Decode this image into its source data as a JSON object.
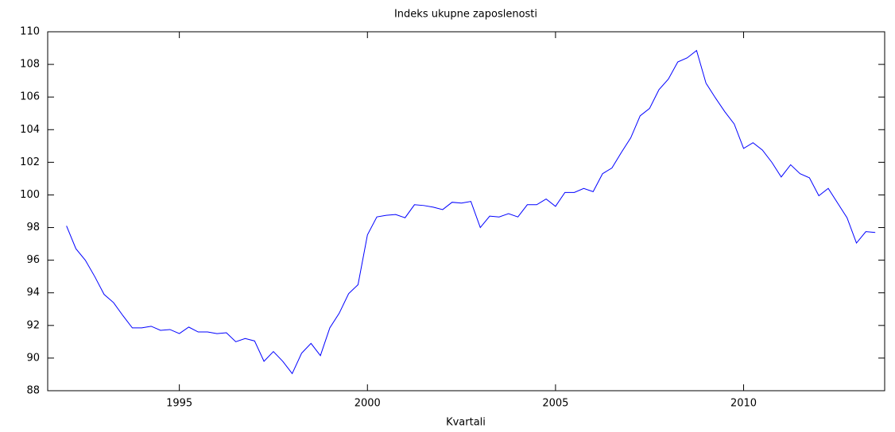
{
  "chart_data": {
    "type": "line",
    "title": "Indeks ukupne zaposlenosti",
    "x_label": "Kvartali",
    "x": [
      1992,
      1992.25,
      1992.5,
      1992.75,
      1993,
      1993.25,
      1993.5,
      1993.75,
      1994,
      1994.25,
      1994.5,
      1994.75,
      1995,
      1995.25,
      1995.5,
      1995.75,
      1996,
      1996.25,
      1996.5,
      1996.75,
      1997,
      1997.25,
      1997.5,
      1997.75,
      1998,
      1998.25,
      1998.5,
      1998.75,
      1999,
      1999.25,
      1999.5,
      1999.75,
      2000,
      2000.25,
      2000.5,
      2000.75,
      2001,
      2001.25,
      2001.5,
      2001.75,
      2002,
      2002.25,
      2002.5,
      2002.75,
      2003,
      2003.25,
      2003.5,
      2003.75,
      2004,
      2004.25,
      2004.5,
      2004.75,
      2005,
      2005.25,
      2005.5,
      2005.75,
      2006,
      2006.25,
      2006.5,
      2006.75,
      2007,
      2007.25,
      2007.5,
      2007.75,
      2008,
      2008.25,
      2008.5,
      2008.75,
      2009,
      2009.25,
      2009.5,
      2009.75,
      2010,
      2010.25,
      2010.5,
      2010.75,
      2011,
      2011.25,
      2011.5,
      2011.75,
      2012,
      2012.25,
      2012.5,
      2012.75,
      2013,
      2013.25,
      2013.5
    ],
    "series": [
      {
        "color": "#0000ff",
        "values": [
          98.1,
          96.7,
          96.0,
          95.0,
          93.9,
          93.4,
          92.6,
          91.85,
          91.85,
          91.95,
          91.7,
          91.75,
          91.5,
          91.9,
          91.6,
          91.6,
          91.5,
          91.55,
          91.0,
          91.2,
          91.05,
          89.8,
          90.4,
          89.8,
          89.05,
          90.3,
          90.9,
          90.15,
          91.85,
          92.75,
          93.95,
          94.5,
          97.55,
          98.65,
          98.75,
          98.8,
          98.6,
          99.4,
          99.35,
          99.25,
          99.1,
          99.55,
          99.5,
          99.6,
          98.0,
          98.7,
          98.65,
          98.85,
          98.65,
          99.4,
          99.4,
          99.75,
          99.3,
          100.15,
          100.15,
          100.4,
          100.2,
          101.3,
          101.65,
          102.6,
          103.5,
          104.85,
          105.3,
          106.45,
          107.1,
          108.15,
          108.4,
          108.85,
          106.85,
          105.95,
          105.1,
          104.35,
          102.85,
          103.2,
          102.75,
          102.0,
          101.1,
          101.85,
          101.3,
          101.05,
          99.95,
          100.4,
          99.5,
          98.6,
          97.05,
          97.75,
          97.7
        ]
      }
    ],
    "xlim": [
      1991.5,
      2013.75
    ],
    "ylim": [
      88,
      110
    ],
    "xticks": [
      1995,
      2000,
      2005,
      2010
    ],
    "yticks": [
      88,
      90,
      92,
      94,
      96,
      98,
      100,
      102,
      104,
      106,
      108,
      110
    ],
    "grid": false
  }
}
